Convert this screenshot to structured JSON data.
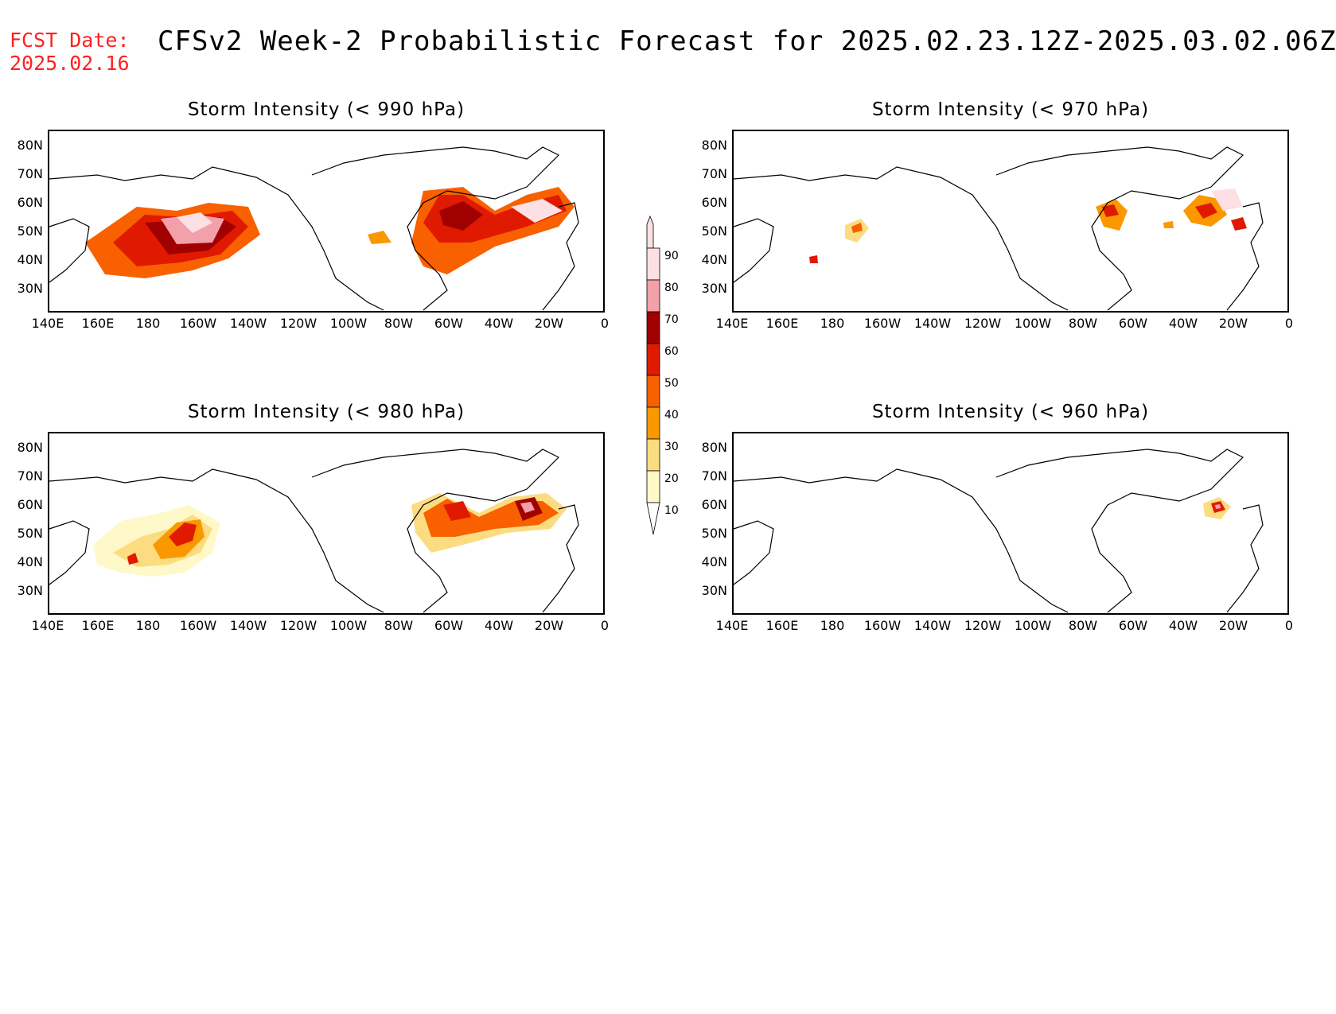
{
  "header": {
    "fcst_label": "FCST Date:",
    "fcst_date": "2025.02.16",
    "title": "CFSv2 Week-2 Probabilistic Forecast for 2025.02.23.12Z-2025.03.02.06Z"
  },
  "axes": {
    "lat_labels": [
      "80N",
      "70N",
      "60N",
      "50N",
      "40N",
      "30N"
    ],
    "lon_labels": [
      "140E",
      "160E",
      "180",
      "160W",
      "140W",
      "120W",
      "100W",
      "80W",
      "60W",
      "40W",
      "20W",
      "0"
    ]
  },
  "panels": [
    {
      "title": "Storm Intensity (< 990 hPa)",
      "threshold_hpa": 990
    },
    {
      "title": "Storm Intensity (< 970 hPa)",
      "threshold_hpa": 970
    },
    {
      "title": "Storm Intensity (< 980 hPa)",
      "threshold_hpa": 980
    },
    {
      "title": "Storm Intensity (< 960 hPa)",
      "threshold_hpa": 960
    }
  ],
  "colorbar": {
    "labels": [
      "90",
      "80",
      "70",
      "60",
      "50",
      "40",
      "30",
      "20",
      "10"
    ],
    "colors": [
      "#fde0e4",
      "#f2a0aa",
      "#d8606e",
      "#a00000",
      "#e01a00",
      "#f86000",
      "#fa9800",
      "#fbdc80",
      "#fff8c8"
    ]
  }
}
